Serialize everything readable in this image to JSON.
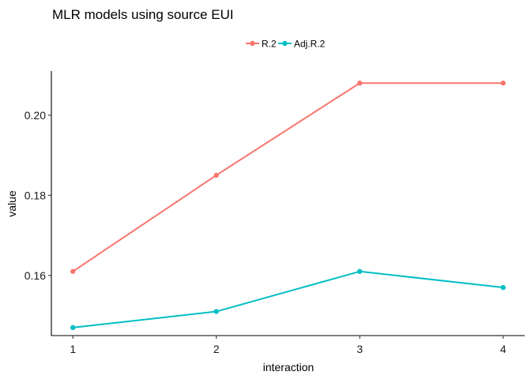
{
  "chart_data": {
    "type": "line",
    "title": "MLR models using source EUI",
    "xlabel": "interaction",
    "ylabel": "value",
    "x": [
      1,
      2,
      3,
      4
    ],
    "xticks": [
      "1",
      "2",
      "3",
      "4"
    ],
    "yticks": [
      "0.16",
      "0.18",
      "0.20"
    ],
    "ylim": [
      0.145,
      0.211
    ],
    "xlim": [
      0.85,
      4.15
    ],
    "grid": false,
    "legend_position": "top",
    "series": [
      {
        "name": "R.2",
        "color": "#F8766D",
        "values": [
          0.161,
          0.185,
          0.208,
          0.208
        ]
      },
      {
        "name": "Adj.R.2",
        "color": "#00BFC4",
        "values": [
          0.147,
          0.151,
          0.161,
          0.157
        ]
      }
    ]
  }
}
